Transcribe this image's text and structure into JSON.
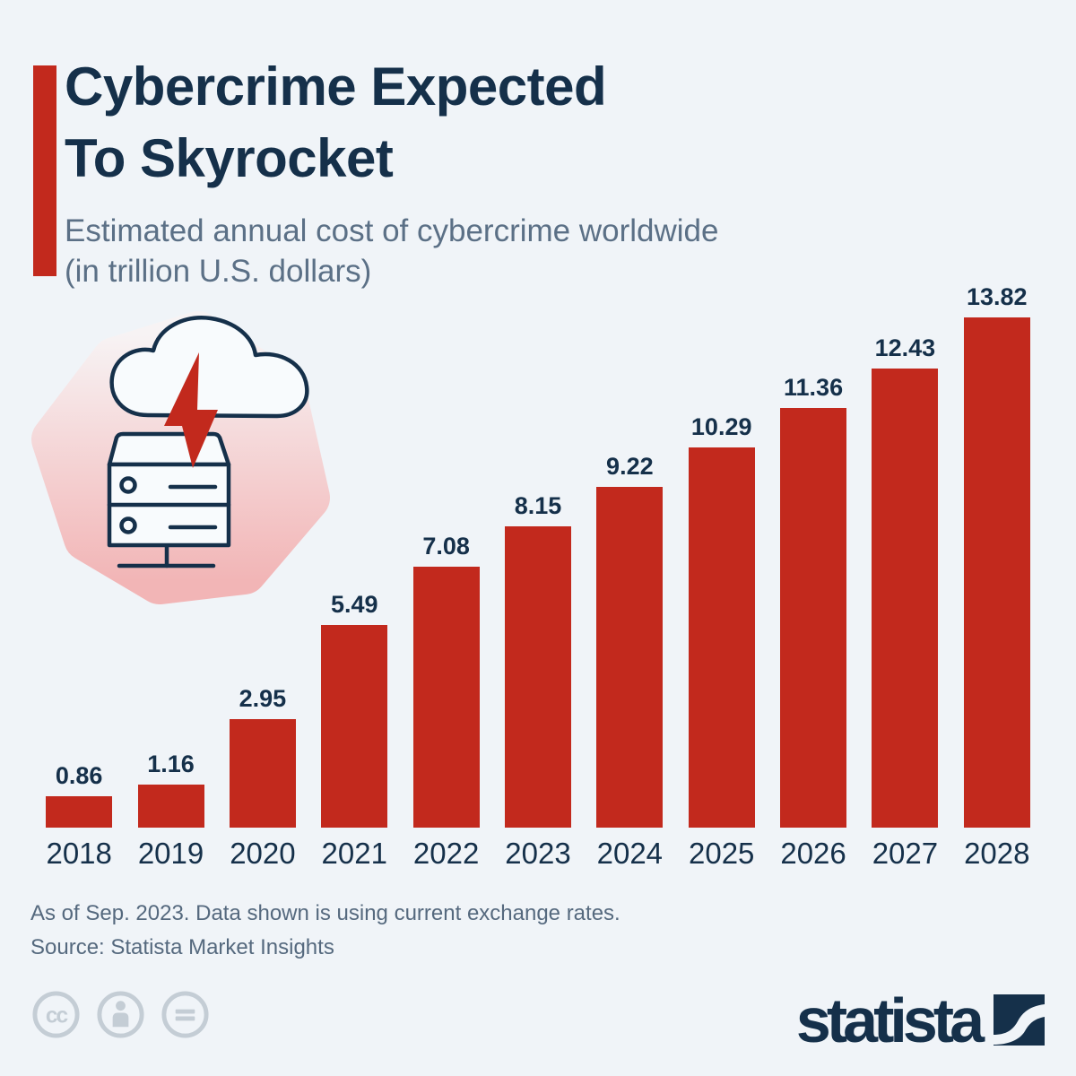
{
  "header": {
    "title_line1": "Cybercrime Expected",
    "title_line2": "To Skyrocket",
    "subtitle_line1": "Estimated annual cost of cybercrime worldwide",
    "subtitle_line2": "(in trillion U.S. dollars)"
  },
  "chart_data": {
    "type": "bar",
    "categories": [
      "2018",
      "2019",
      "2020",
      "2021",
      "2022",
      "2023",
      "2024",
      "2025",
      "2026",
      "2027",
      "2028"
    ],
    "values": [
      0.86,
      1.16,
      2.95,
      5.49,
      7.08,
      8.15,
      9.22,
      10.29,
      11.36,
      12.43,
      13.82
    ],
    "title": "Cybercrime Expected To Skyrocket",
    "subtitle": "Estimated annual cost of cybercrime worldwide (in trillion U.S. dollars)",
    "xlabel": "",
    "ylabel": "",
    "ylim": [
      0,
      14
    ],
    "grid": false,
    "legend": "none",
    "bar_color": "#c2291d",
    "value_labels_shown": true
  },
  "illustration": {
    "icons": [
      "cloud-icon",
      "lightning-icon",
      "server-icon"
    ],
    "blob_gradient_top": "#f7f3f4",
    "blob_gradient_bottom": "#f2b5b6"
  },
  "footer": {
    "note_line1": "As of Sep. 2023. Data shown is using current exchange rates.",
    "note_line2": "Source: Statista Market Insights",
    "brand": "statista",
    "license_icons": [
      "cc-icon",
      "cc-by-icon",
      "cc-nd-icon"
    ]
  },
  "colors": {
    "background": "#f0f4f8",
    "accent_red": "#c2291d",
    "navy_text": "#15304a",
    "muted_blue_text": "#5b7086",
    "license_icon_gray": "#c4cdd5"
  }
}
